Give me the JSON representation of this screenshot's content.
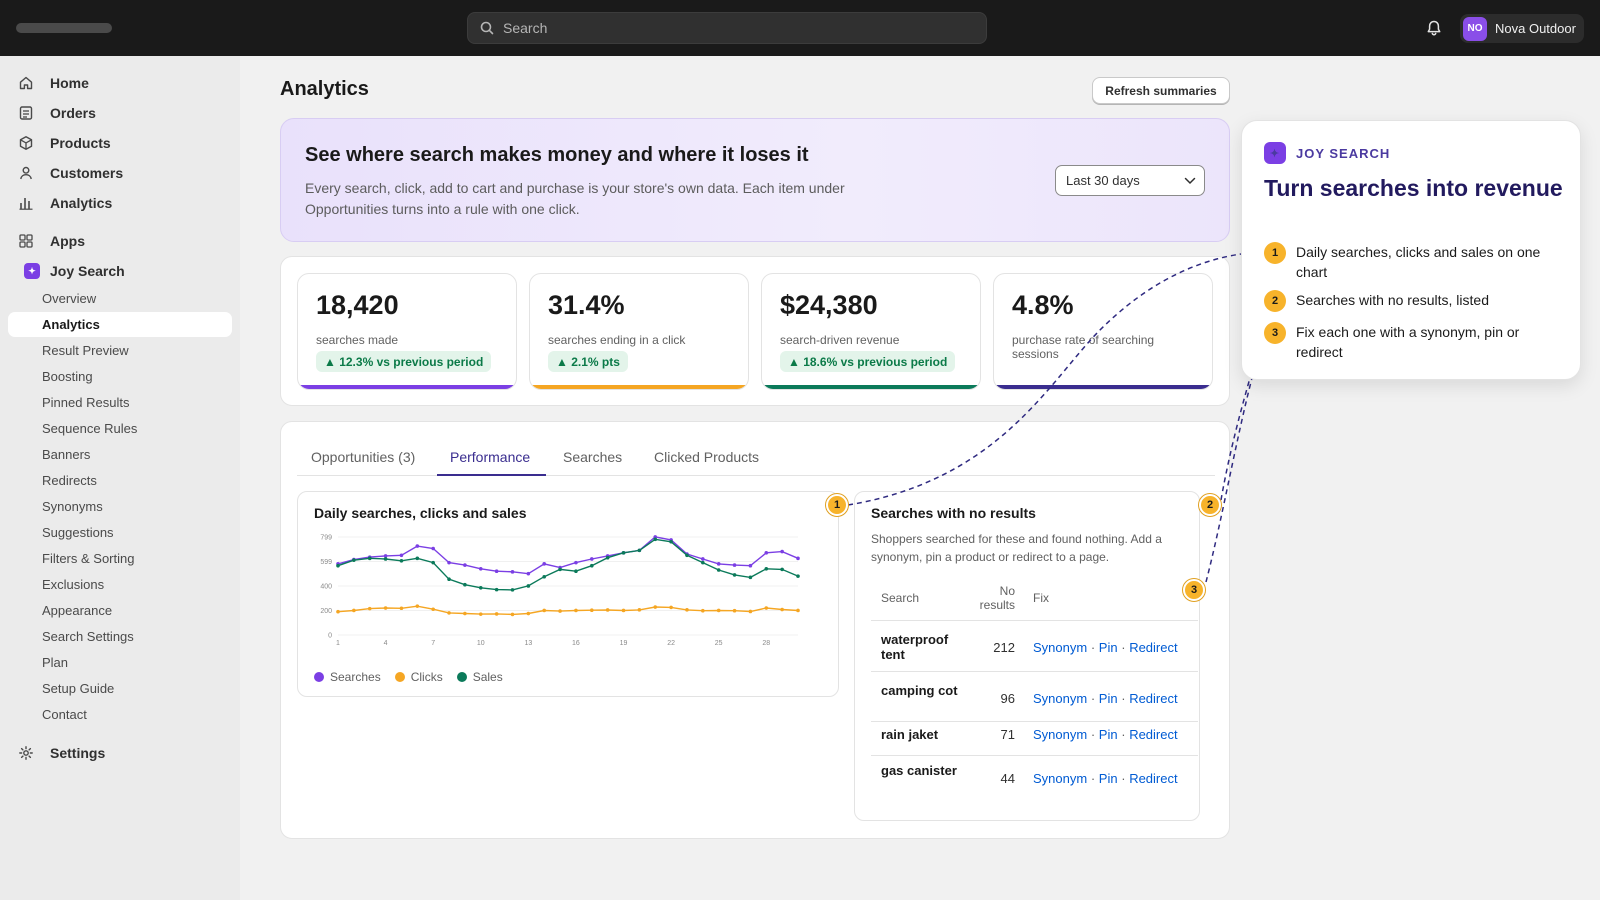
{
  "topbar": {
    "search_placeholder": "Search",
    "store_initials": "NO",
    "store_name": "Nova Outdoor"
  },
  "sidebar": {
    "main": [
      {
        "label": "Home",
        "icon": "home-icon"
      },
      {
        "label": "Orders",
        "icon": "orders-icon"
      },
      {
        "label": "Products",
        "icon": "products-icon"
      },
      {
        "label": "Customers",
        "icon": "customers-icon"
      },
      {
        "label": "Analytics",
        "icon": "analytics-icon"
      }
    ],
    "apps_label": "Apps",
    "app_name": "Joy Search",
    "app_items": [
      "Overview",
      "Analytics",
      "Result Preview",
      "Boosting",
      "Pinned Results",
      "Sequence Rules",
      "Banners",
      "Redirects",
      "Synonyms",
      "Suggestions",
      "Filters & Sorting",
      "Exclusions",
      "Appearance",
      "Search Settings",
      "Plan",
      "Setup Guide",
      "Contact"
    ],
    "active_app_item": "Analytics",
    "settings_label": "Settings"
  },
  "page": {
    "title": "Analytics",
    "refresh_label": "Refresh summaries"
  },
  "hero": {
    "title": "See where search makes money and where it loses it",
    "body": "Every search, click, add to cart and purchase is your store's own data. Each item under Opportunities turns into a rule with one click.",
    "range": "Last 30 days"
  },
  "stats": [
    {
      "value": "18,420",
      "label": "searches made",
      "delta": "▲ 12.3% vs previous period",
      "color": "#7b3fe4"
    },
    {
      "value": "31.4%",
      "label": "searches ending in a click",
      "delta": "▲ 2.1% pts",
      "color": "#f5a623"
    },
    {
      "value": "$24,380",
      "label": "search-driven revenue",
      "delta": "▲ 18.6% vs previous period",
      "color": "#0b7a5a"
    },
    {
      "value": "4.8%",
      "label": "purchase rate of searching sessions",
      "delta": "",
      "color": "#3a2d8f"
    }
  ],
  "tabs": [
    {
      "label": "Opportunities (3)"
    },
    {
      "label": "Performance"
    },
    {
      "label": "Searches"
    },
    {
      "label": "Clicked Products"
    }
  ],
  "active_tab": "Performance",
  "chart": {
    "title": "Daily searches, clicks and sales",
    "legend": [
      "Searches",
      "Clicks",
      "Sales"
    ]
  },
  "chart_data": {
    "type": "line",
    "title": "Daily searches, clicks and sales",
    "x": [
      1,
      2,
      3,
      4,
      5,
      6,
      7,
      8,
      9,
      10,
      11,
      12,
      13,
      14,
      15,
      16,
      17,
      18,
      19,
      20,
      21,
      22,
      23,
      24,
      25,
      26,
      27,
      28,
      29,
      30
    ],
    "x_ticks": [
      "1",
      "4",
      "7",
      "10",
      "13",
      "16",
      "19",
      "22",
      "25",
      "28"
    ],
    "y_ticks": [
      "0",
      "200",
      "400",
      "599",
      "799"
    ],
    "ylim": [
      0,
      799
    ],
    "series": [
      {
        "name": "Searches",
        "color": "#7b3fe4",
        "values": [
          580,
          615,
          635,
          645,
          650,
          725,
          705,
          590,
          570,
          540,
          520,
          515,
          500,
          580,
          550,
          590,
          620,
          645,
          670,
          690,
          800,
          775,
          660,
          620,
          580,
          570,
          565,
          670,
          680,
          625
        ]
      },
      {
        "name": "Sales",
        "color": "#0b7a5a",
        "values": [
          565,
          610,
          625,
          620,
          605,
          625,
          590,
          455,
          410,
          385,
          370,
          368,
          400,
          475,
          535,
          520,
          565,
          630,
          670,
          690,
          780,
          760,
          650,
          590,
          530,
          490,
          470,
          540,
          535,
          480
        ]
      },
      {
        "name": "Clicks",
        "color": "#f5a623",
        "values": [
          190,
          200,
          215,
          220,
          218,
          235,
          210,
          180,
          175,
          170,
          172,
          168,
          175,
          200,
          195,
          200,
          202,
          204,
          200,
          205,
          228,
          225,
          205,
          198,
          200,
          198,
          192,
          220,
          208,
          200
        ]
      }
    ]
  },
  "no_results": {
    "title": "Searches with no results",
    "desc": "Shoppers searched for these and found nothing. Add a synonym, pin a product or redirect to a page.",
    "col_search": "Search",
    "col_count": "No results",
    "col_fix": "Fix",
    "rows": [
      {
        "term": "waterproof tent",
        "count": "212"
      },
      {
        "term": "camping cot",
        "count": "96"
      },
      {
        "term": "rain jaket",
        "count": "71"
      },
      {
        "term": "gas canister",
        "count": "44"
      }
    ],
    "fix_synonym": "Synonym",
    "fix_pin": "Pin",
    "fix_redirect": "Redirect",
    "sep": "·"
  },
  "callout": {
    "brand": "JOY SEARCH",
    "title": "Turn searches into revenue",
    "items": [
      {
        "n": "1",
        "text": "Daily searches, clicks and sales on one chart"
      },
      {
        "n": "2",
        "text": "Searches with no results, listed"
      },
      {
        "n": "3",
        "text": "Fix each one with a synonym, pin or redirect"
      }
    ]
  },
  "badges": [
    "1",
    "2",
    "3"
  ]
}
